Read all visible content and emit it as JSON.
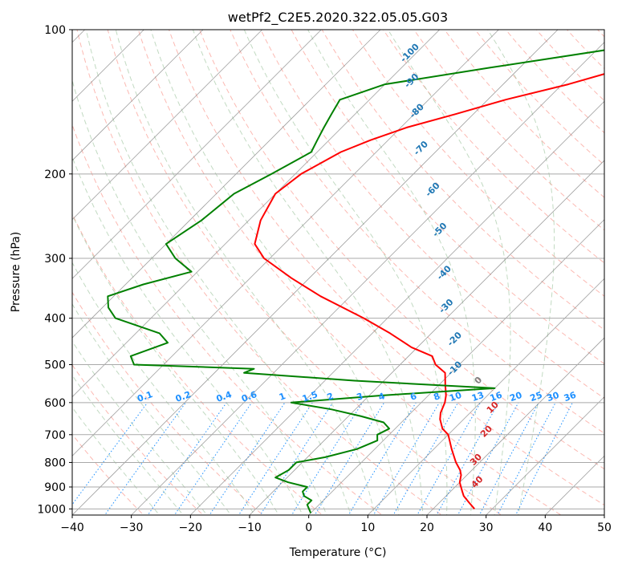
{
  "chart_data": {
    "type": "line",
    "title": "wetPf2_C2E5.2020.322.05.05.G03",
    "xlabel": "Temperature (°C)",
    "ylabel": "Pressure (hPa)",
    "xlim": [
      -40,
      50
    ],
    "ylim": [
      1030,
      100
    ],
    "y_scale": "log",
    "grid": true,
    "x_ticks": [
      "−40",
      "−30",
      "−20",
      "−10",
      "0",
      "10",
      "20",
      "30",
      "40",
      "50"
    ],
    "y_ticks": [
      "100",
      "200",
      "300",
      "400",
      "500",
      "600",
      "700",
      "800",
      "900",
      "1000"
    ],
    "skew_deg": 45,
    "series": [
      {
        "role": "temperature",
        "color": "#ff0000",
        "p": [
          100,
          110,
          120,
          130,
          140,
          150,
          160,
          170,
          180,
          200,
          220,
          250,
          280,
          300,
          330,
          360,
          400,
          430,
          460,
          480,
          500,
          520,
          550,
          580,
          600,
          630,
          650,
          680,
          700,
          750,
          800,
          830,
          850,
          880,
          900,
          920,
          940,
          970,
          1000
        ],
        "t": [
          -7,
          -14.5,
          -22,
          -29,
          -37,
          -43,
          -49,
          -53,
          -56,
          -59,
          -60,
          -58,
          -55,
          -51,
          -43,
          -35,
          -24,
          -17,
          -11,
          -6,
          -4,
          -1,
          1,
          3,
          4,
          5,
          6,
          8,
          10,
          13,
          16,
          18,
          19,
          20,
          21,
          22,
          23,
          25,
          27
        ]
      },
      {
        "role": "dewpoint",
        "color": "#008000",
        "p": [
          100,
          110,
          120,
          130,
          140,
          150,
          160,
          170,
          180,
          200,
          220,
          250,
          280,
          300,
          320,
          340,
          360,
          380,
          400,
          430,
          450,
          480,
          500,
          510,
          520,
          540,
          560,
          580,
          600,
          620,
          640,
          660,
          680,
          700,
          720,
          750,
          780,
          800,
          830,
          860,
          880,
          900,
          920,
          940,
          960,
          980,
          1000,
          1020
        ],
        "t": [
          -21,
          -28,
          -45,
          -60,
          -65,
          -64,
          -63,
          -62,
          -61,
          -64,
          -67,
          -68,
          -70,
          -66,
          -61,
          -67,
          -71,
          -69,
          -66,
          -56,
          -53,
          -57,
          -55,
          -34,
          -35,
          -15,
          10,
          -8,
          -22,
          -14,
          -8,
          -3,
          -1,
          -2,
          -1,
          -3,
          -7,
          -11,
          -11,
          -12,
          -9,
          -5,
          -5,
          -4,
          -2,
          -2,
          -1,
          0
        ]
      }
    ],
    "annotations": {
      "dry_adiabat_labels": [
        "-100",
        "-90",
        "-80",
        "-70",
        "-60",
        "-50",
        "-40",
        "-30",
        "-20",
        "-10",
        "0",
        "10",
        "20",
        "30",
        "40"
      ],
      "mixing_ratio_labels": [
        "0.1",
        "0.2",
        "0.4",
        "0.6",
        "1",
        "1.5",
        "2",
        "3",
        "4",
        "6",
        "8",
        "10",
        "13",
        "16",
        "20",
        "25",
        "30",
        "36"
      ]
    },
    "colors": {
      "isotherm": "#808080",
      "isobar": "#a9a9a9",
      "dry_adiabat": "#fa8072",
      "moist_adiabat": "#8fbc8f",
      "mixing_ratio": "#1e90ff",
      "cold_label": "#1f77b4",
      "warm_label": "#d62728",
      "zero_label": "#808080"
    }
  }
}
